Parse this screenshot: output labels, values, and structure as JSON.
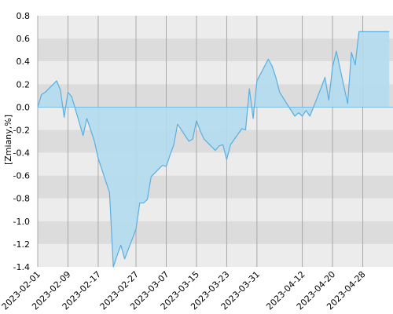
{
  "chart_data": {
    "type": "area",
    "ylabel": "[Zmiany,%]",
    "ylim": [
      -1.4,
      0.8
    ],
    "yticks": [
      0.8,
      0.6,
      0.4,
      0.2,
      0.0,
      -0.2,
      -0.4,
      -0.6,
      -0.8,
      -1.0,
      -1.2,
      -1.4
    ],
    "ytick_labels": [
      "0.8",
      "0.6",
      "0.4",
      "0.2",
      "0.0",
      "-0.2",
      "-0.4",
      "-0.6",
      "-0.8",
      "-1.0",
      "-1.2",
      "-1.4"
    ],
    "xlim": [
      "2023-02-01",
      "2023-05-06"
    ],
    "xticks": [
      "2023-02-01",
      "2023-02-09",
      "2023-02-17",
      "2023-02-27",
      "2023-03-07",
      "2023-03-15",
      "2023-03-23",
      "2023-03-31",
      "2023-04-12",
      "2023-04-20",
      "2023-04-28"
    ],
    "grid": true,
    "colors": {
      "line": "#5aaee0",
      "area_fill": "#b3dcef",
      "band_dark": "#dcdcdc",
      "band_light": "#ececec",
      "vgrid": "#a8a8a8"
    },
    "series": [
      {
        "x": [
          "2023-02-01",
          "2023-02-02",
          "2023-02-03",
          "2023-02-06",
          "2023-02-07",
          "2023-02-08",
          "2023-02-09",
          "2023-02-10",
          "2023-02-13",
          "2023-02-14",
          "2023-02-15",
          "2023-02-16",
          "2023-02-17",
          "2023-02-20",
          "2023-02-21",
          "2023-02-22",
          "2023-02-23",
          "2023-02-24",
          "2023-02-27",
          "2023-02-28",
          "2023-03-01",
          "2023-03-02",
          "2023-03-03",
          "2023-03-06",
          "2023-03-07",
          "2023-03-08",
          "2023-03-09",
          "2023-03-10",
          "2023-03-13",
          "2023-03-14",
          "2023-03-15",
          "2023-03-16",
          "2023-03-17",
          "2023-03-20",
          "2023-03-21",
          "2023-03-22",
          "2023-03-23",
          "2023-03-24",
          "2023-03-27",
          "2023-03-28",
          "2023-03-29",
          "2023-03-30",
          "2023-03-31",
          "2023-04-03",
          "2023-04-04",
          "2023-04-05",
          "2023-04-06",
          "2023-04-10",
          "2023-04-11",
          "2023-04-12",
          "2023-04-13",
          "2023-04-14",
          "2023-04-17",
          "2023-04-18",
          "2023-04-19",
          "2023-04-20",
          "2023-04-21",
          "2023-04-24",
          "2023-04-25",
          "2023-04-26",
          "2023-04-27",
          "2023-04-28",
          "2023-05-01",
          "2023-05-02",
          "2023-05-03",
          "2023-05-04",
          "2023-05-05"
        ],
        "values": [
          0.0,
          0.11,
          0.13,
          0.23,
          0.15,
          -0.09,
          0.13,
          0.09,
          -0.25,
          -0.1,
          -0.2,
          -0.3,
          -0.45,
          -0.75,
          -1.4,
          -1.3,
          -1.21,
          -1.33,
          -1.07,
          -0.84,
          -0.84,
          -0.81,
          -0.61,
          -0.51,
          -0.52,
          -0.42,
          -0.33,
          -0.15,
          -0.3,
          -0.28,
          -0.12,
          -0.21,
          -0.28,
          -0.38,
          -0.34,
          -0.33,
          -0.46,
          -0.33,
          -0.19,
          -0.2,
          0.16,
          -0.1,
          0.23,
          0.42,
          0.36,
          0.26,
          0.13,
          -0.08,
          -0.05,
          -0.08,
          -0.03,
          -0.08,
          0.17,
          0.26,
          0.06,
          0.35,
          0.49,
          0.03,
          0.48,
          0.37,
          0.66,
          0.66,
          0.66,
          0.66,
          0.66,
          0.66,
          0.66
        ]
      }
    ]
  }
}
